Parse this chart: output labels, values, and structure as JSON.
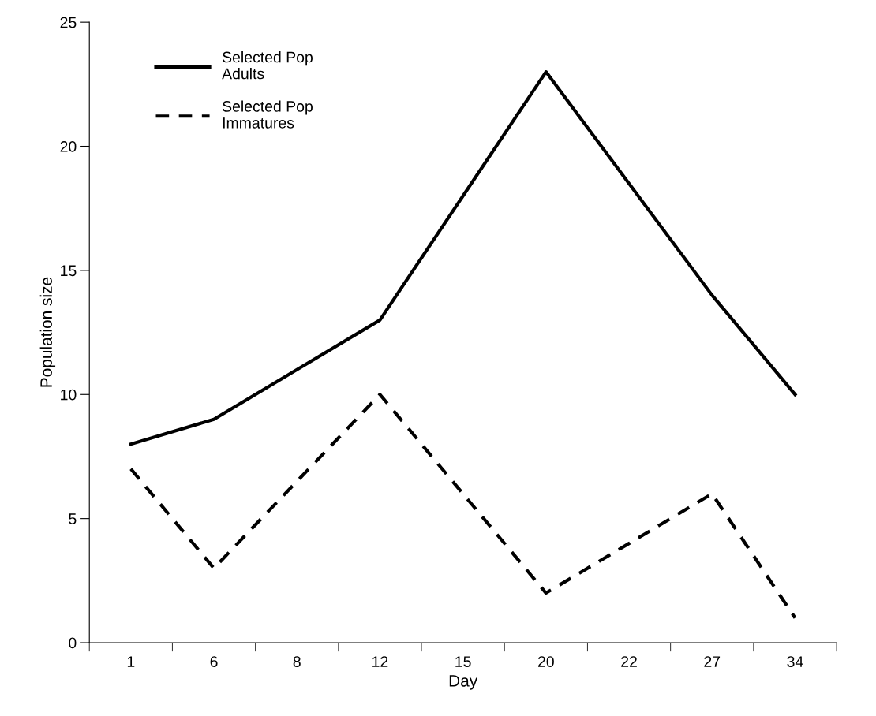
{
  "chart_data": {
    "type": "line",
    "xlabel": "Day",
    "ylabel": "Population size",
    "categories": [
      "1",
      "6",
      "8",
      "12",
      "15",
      "20",
      "22",
      "27",
      "34"
    ],
    "series": [
      {
        "name": "Selected Pop\nAdults",
        "color": "#000000",
        "line_style": "solid",
        "values": [
          8,
          9,
          11,
          13,
          18,
          23,
          18.5,
          14,
          10
        ]
      },
      {
        "name": "Selected Pop\nImmatures",
        "color": "#000000",
        "line_style": "dashed",
        "values": [
          7,
          3,
          6.5,
          10,
          6,
          2,
          4,
          6,
          1
        ]
      }
    ],
    "ylim": [
      0,
      25
    ],
    "yticks": [
      0,
      5,
      10,
      15,
      20,
      25
    ],
    "grid": false,
    "legend": "top left",
    "marker": "none"
  }
}
